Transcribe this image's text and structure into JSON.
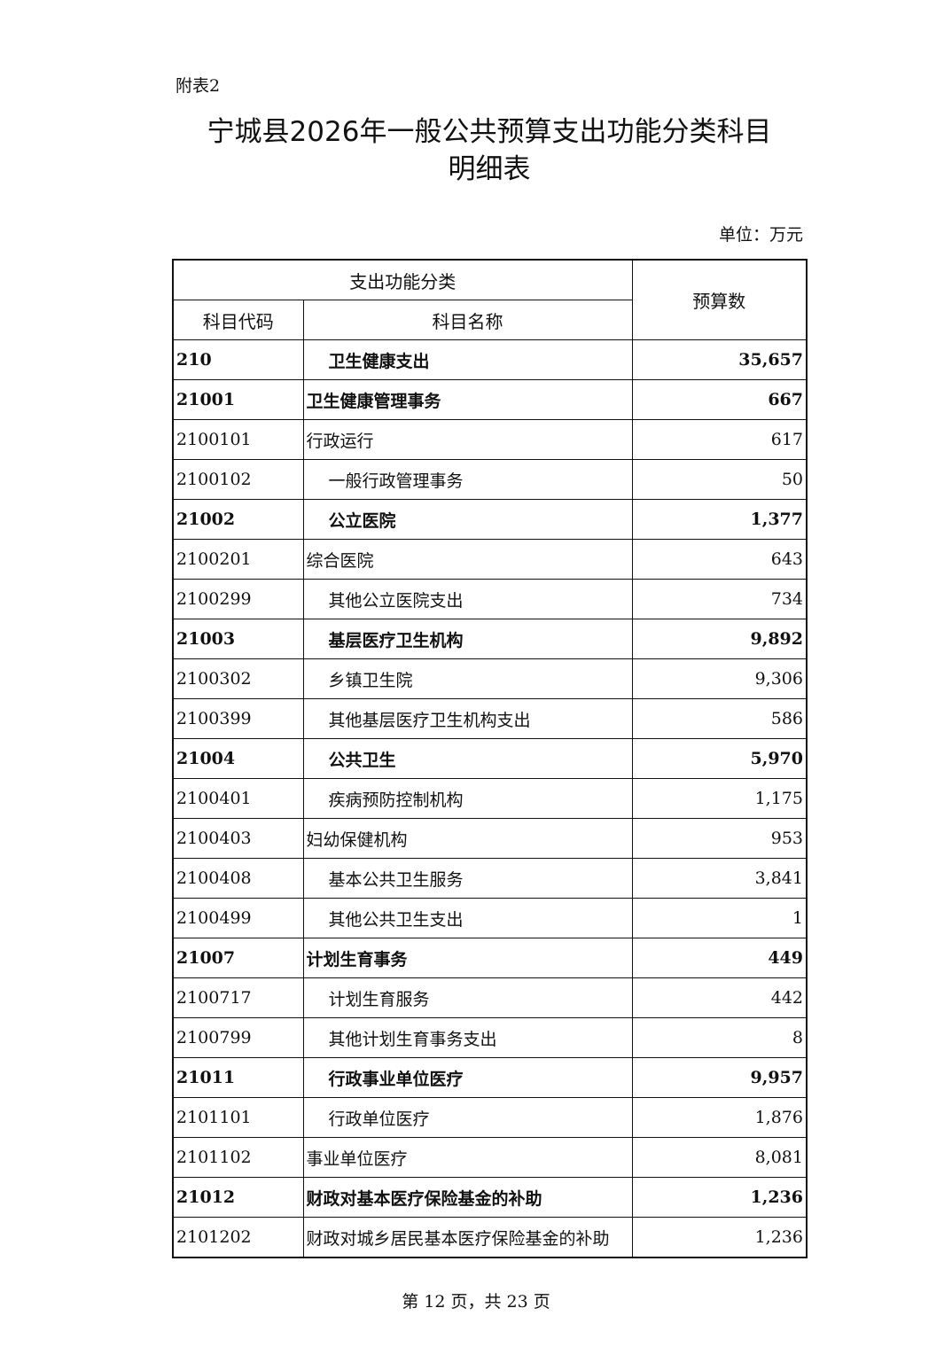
{
  "header": {
    "label": "附表2",
    "title_lines": [
      "宁城县2026年一般公共预算支出功能分类科目",
      "明细表"
    ],
    "unit": "单位：万元"
  },
  "table": {
    "group_header": "支出功能分类",
    "columns": [
      "科目代码",
      "科目名称",
      "预算数"
    ],
    "rows": [
      {
        "code": "210",
        "name": "卫生健康支出",
        "amount": "35,657",
        "bold": true,
        "indent": true
      },
      {
        "code": "21001",
        "name": "卫生健康管理事务",
        "amount": "667",
        "bold": true,
        "indent": false
      },
      {
        "code": "2100101",
        "name": "行政运行",
        "amount": "617",
        "bold": false,
        "indent": false
      },
      {
        "code": "2100102",
        "name": "一般行政管理事务",
        "amount": "50",
        "bold": false,
        "indent": true
      },
      {
        "code": "21002",
        "name": "公立医院",
        "amount": "1,377",
        "bold": true,
        "indent": true
      },
      {
        "code": "2100201",
        "name": "综合医院",
        "amount": "643",
        "bold": false,
        "indent": false
      },
      {
        "code": "2100299",
        "name": "其他公立医院支出",
        "amount": "734",
        "bold": false,
        "indent": true
      },
      {
        "code": "21003",
        "name": "基层医疗卫生机构",
        "amount": "9,892",
        "bold": true,
        "indent": true
      },
      {
        "code": "2100302",
        "name": "乡镇卫生院",
        "amount": "9,306",
        "bold": false,
        "indent": true
      },
      {
        "code": "2100399",
        "name": "其他基层医疗卫生机构支出",
        "amount": "586",
        "bold": false,
        "indent": true
      },
      {
        "code": "21004",
        "name": "公共卫生",
        "amount": "5,970",
        "bold": true,
        "indent": true
      },
      {
        "code": "2100401",
        "name": "疾病预防控制机构",
        "amount": "1,175",
        "bold": false,
        "indent": true
      },
      {
        "code": "2100403",
        "name": "妇幼保健机构",
        "amount": "953",
        "bold": false,
        "indent": false
      },
      {
        "code": "2100408",
        "name": "基本公共卫生服务",
        "amount": "3,841",
        "bold": false,
        "indent": true
      },
      {
        "code": "2100499",
        "name": "其他公共卫生支出",
        "amount": "1",
        "bold": false,
        "indent": true
      },
      {
        "code": "21007",
        "name": "计划生育事务",
        "amount": "449",
        "bold": true,
        "indent": false
      },
      {
        "code": "2100717",
        "name": "计划生育服务",
        "amount": "442",
        "bold": false,
        "indent": true
      },
      {
        "code": "2100799",
        "name": "其他计划生育事务支出",
        "amount": "8",
        "bold": false,
        "indent": true
      },
      {
        "code": "21011",
        "name": "行政事业单位医疗",
        "amount": "9,957",
        "bold": true,
        "indent": true
      },
      {
        "code": "2101101",
        "name": "行政单位医疗",
        "amount": "1,876",
        "bold": false,
        "indent": true
      },
      {
        "code": "2101102",
        "name": "事业单位医疗",
        "amount": "8,081",
        "bold": false,
        "indent": false
      },
      {
        "code": "21012",
        "name": "财政对基本医疗保险基金的补助",
        "amount": "1,236",
        "bold": true,
        "indent": false
      },
      {
        "code": "2101202",
        "name": "财政对城乡居民基本医疗保险基金的补助",
        "amount": "1,236",
        "bold": false,
        "indent": false
      }
    ]
  },
  "footer": {
    "page": "第 12 页，共 23 页"
  }
}
